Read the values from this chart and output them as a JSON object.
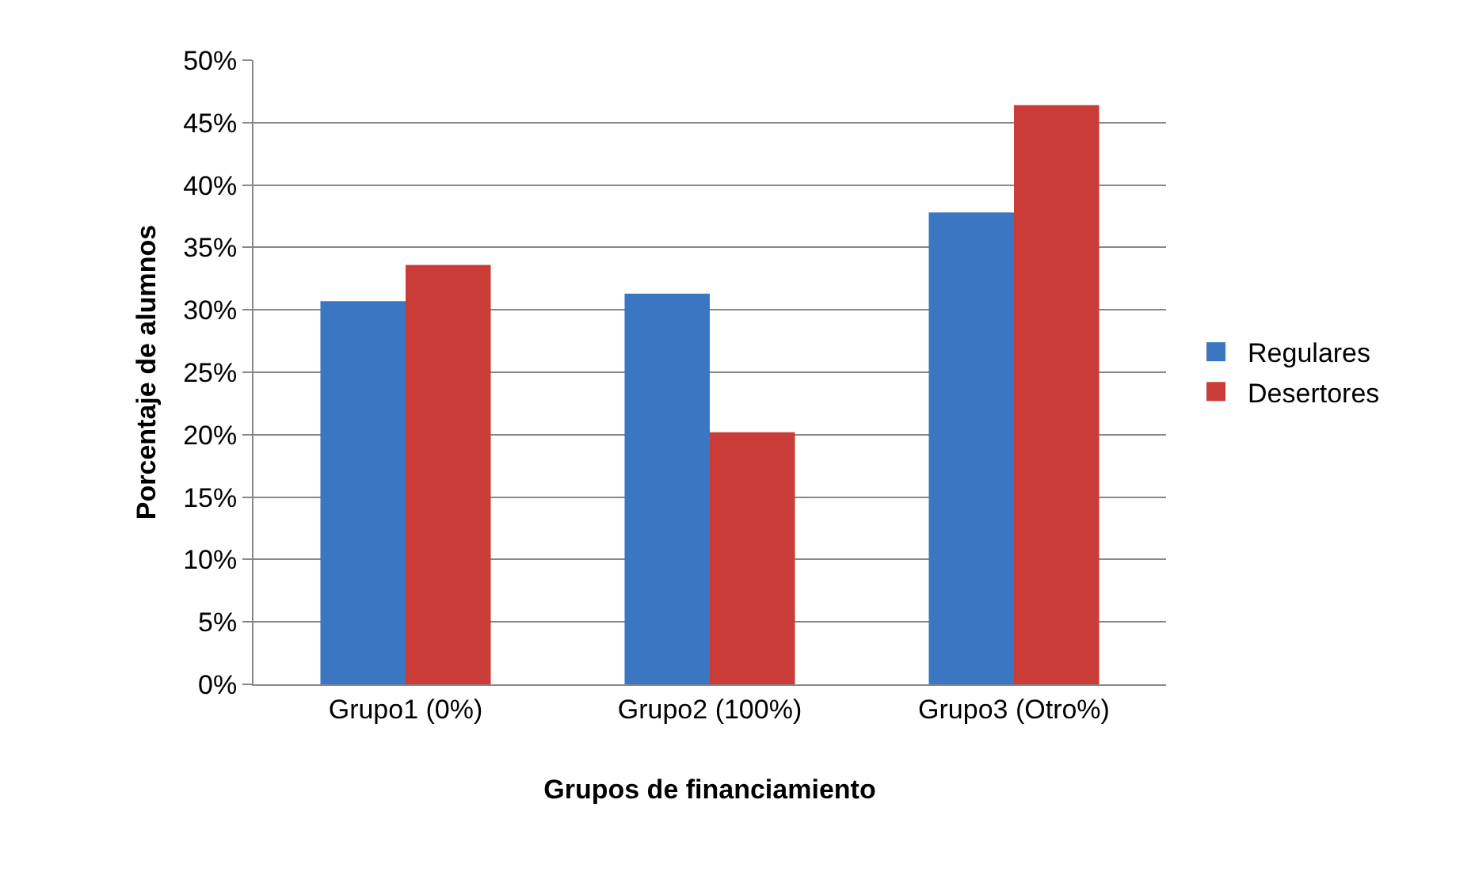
{
  "chart_data": {
    "type": "bar",
    "xlabel": "Grupos de financiamiento",
    "ylabel": "Porcentaje de alumnos",
    "categories": [
      "Grupo1 (0%)",
      "Grupo2 (100%)",
      "Grupo3 (Otro%)"
    ],
    "series": [
      {
        "name": "Regulares",
        "color": "#3a76c2",
        "values": [
          30.7,
          31.3,
          37.8
        ]
      },
      {
        "name": "Desertores",
        "color": "#c93c38",
        "values": [
          33.6,
          20.2,
          46.4
        ]
      }
    ],
    "ylim": [
      0,
      50
    ],
    "yticks": [
      {
        "value": 0,
        "label": "0%"
      },
      {
        "value": 5,
        "label": "5%"
      },
      {
        "value": 10,
        "label": "10%"
      },
      {
        "value": 15,
        "label": "15%"
      },
      {
        "value": 20,
        "label": "20%"
      },
      {
        "value": 25,
        "label": "25%"
      },
      {
        "value": 30,
        "label": "30%"
      },
      {
        "value": 35,
        "label": "35%"
      },
      {
        "value": 40,
        "label": "40%"
      },
      {
        "value": 45,
        "label": "45%"
      },
      {
        "value": 50,
        "label": "50%"
      }
    ],
    "grid": "y",
    "legend": "right"
  }
}
